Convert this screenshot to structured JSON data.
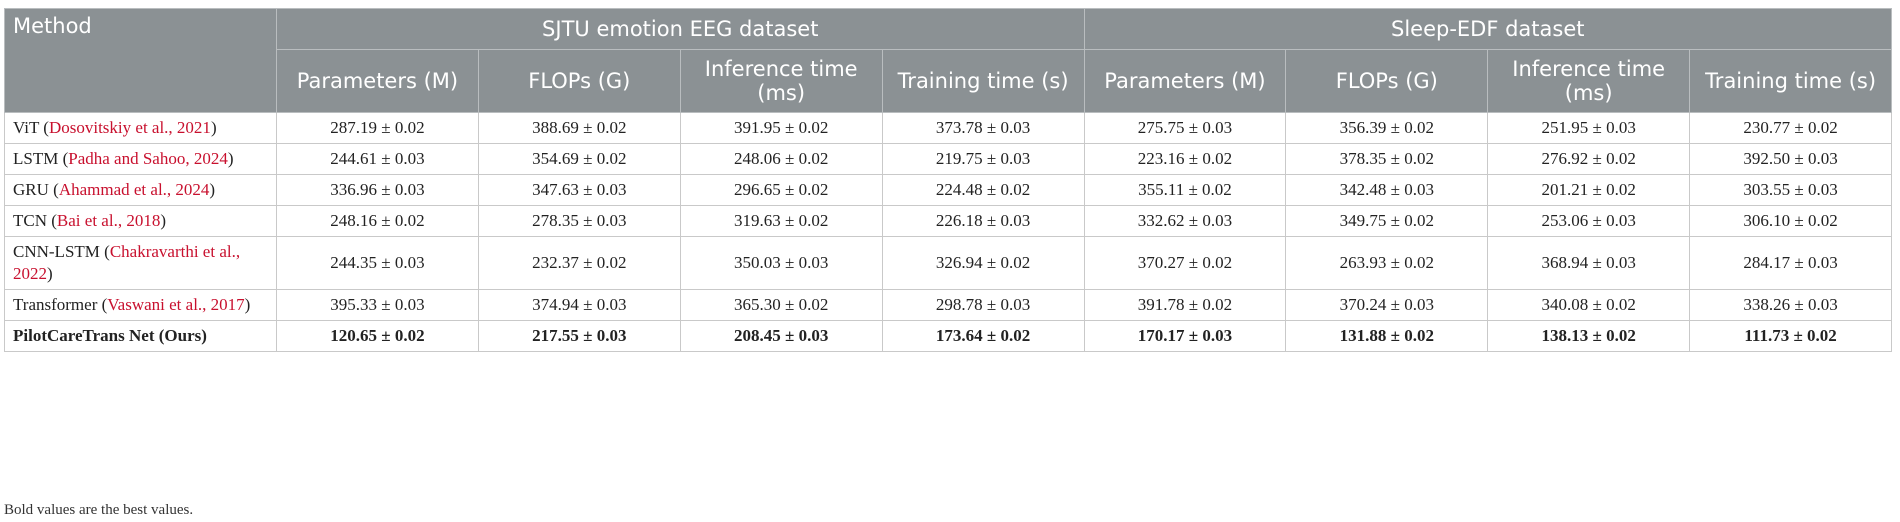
{
  "table": {
    "header": {
      "method": "Method",
      "groups": [
        "SJTU emotion EEG dataset",
        "Sleep-EDF dataset"
      ],
      "columns": [
        "Parameters (M)",
        "FLOPs (G)",
        "Inference time (ms)",
        "Training time (s)",
        "Parameters (M)",
        "FLOPs (G)",
        "Inference time (ms)",
        "Training time (s)"
      ]
    },
    "rows": [
      {
        "method": [
          "ViT  (",
          "Dosovitskiy et al., 2021",
          ")"
        ],
        "cells": [
          "287.19 ± 0.02",
          "388.69 ± 0.02",
          "391.95 ± 0.02",
          "373.78 ± 0.03",
          "275.75 ± 0.03",
          "356.39 ± 0.02",
          "251.95 ± 0.03",
          "230.77 ± 0.02"
        ]
      },
      {
        "method": [
          "LSTM (",
          "Padha and Sahoo, 2024",
          ")"
        ],
        "cells": [
          "244.61 ± 0.03",
          "354.69 ± 0.02",
          "248.06 ± 0.02",
          "219.75 ± 0.03",
          "223.16 ± 0.02",
          "378.35 ± 0.02",
          "276.92 ± 0.02",
          "392.50 ± 0.03"
        ]
      },
      {
        "method": [
          "GRU  (",
          "Ahammad et al., 2024",
          ")"
        ],
        "cells": [
          "336.96 ± 0.03",
          "347.63 ± 0.03",
          "296.65 ± 0.02",
          "224.48 ± 0.02",
          "355.11 ± 0.02",
          "342.48 ± 0.03",
          "201.21 ± 0.02",
          "303.55 ± 0.03"
        ]
      },
      {
        "method": [
          "TCN (",
          "Bai et al., 2018",
          ")"
        ],
        "cells": [
          "248.16 ± 0.02",
          "278.35 ± 0.03",
          "319.63 ± 0.02",
          "226.18 ± 0.03",
          "332.62 ± 0.03",
          "349.75 ± 0.02",
          "253.06 ± 0.03",
          "306.10 ± 0.02"
        ]
      },
      {
        "method": [
          "CNN-LSTM (",
          "Chakravarthi et al., 2022",
          ")"
        ],
        "cells": [
          "244.35 ± 0.03",
          "232.37 ± 0.02",
          "350.03 ± 0.03",
          "326.94 ± 0.02",
          "370.27 ± 0.02",
          "263.93 ± 0.02",
          "368.94 ± 0.03",
          "284.17 ± 0.03"
        ]
      },
      {
        "method": [
          "Transformer (",
          "Vaswani et al., 2017",
          ")"
        ],
        "cells": [
          "395.33 ± 0.03",
          "374.94 ± 0.03",
          "365.30 ± 0.02",
          "298.78  ± 0.03",
          "391.78 ± 0.02",
          "370.24 ± 0.03",
          "340.08 ± 0.02",
          "338.26 ± 0.03"
        ]
      },
      {
        "method": [
          "PilotCareTrans Net (Ours)"
        ],
        "bold": true,
        "cells": [
          "120.65 ± 0.02",
          "217.55 ± 0.03",
          "208.45 ±  0.03",
          "173.64 ± 0.02",
          "170.17 ± 0.03",
          "131.88 ± 0.02",
          "138.13 ± 0.02",
          "111.73 ± 0.02"
        ]
      }
    ]
  },
  "footnote": "Bold values are the best values."
}
